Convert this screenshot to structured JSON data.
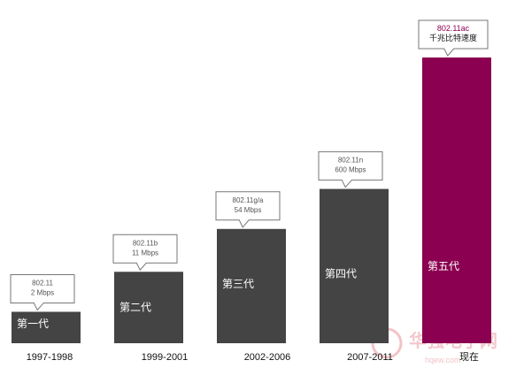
{
  "chart_data": {
    "type": "bar",
    "categories": [
      "第一代",
      "第二代",
      "第三代",
      "第四代",
      "第五代"
    ],
    "periods": [
      "1997-1998",
      "1999-2001",
      "2002-2006",
      "2007-2011",
      "现在"
    ],
    "values": [
      2,
      11,
      54,
      600,
      null
    ],
    "standards": [
      "802.11",
      "802.11b",
      "802.11g/a",
      "802.11n",
      "802.11ac"
    ],
    "callouts": [
      [
        "802.11",
        "2 Mbps"
      ],
      [
        "802.11b",
        "11  Mbps"
      ],
      [
        "802.11g/a",
        "54 Mbps"
      ],
      [
        "802.11n",
        "600 Mbps"
      ],
      [
        "802.11ac",
        "千兆比特速度"
      ]
    ],
    "relative_heights": [
      0.11,
      0.25,
      0.4,
      0.54,
      1.0
    ],
    "colors": {
      "bar": "#444444",
      "highlight": "#8b0051",
      "callout_border": "#777777"
    },
    "grid": false,
    "title": "",
    "xlabel": "",
    "ylabel": ""
  },
  "watermark": {
    "text": "华强电子网",
    "subtext": "hqew.com"
  }
}
